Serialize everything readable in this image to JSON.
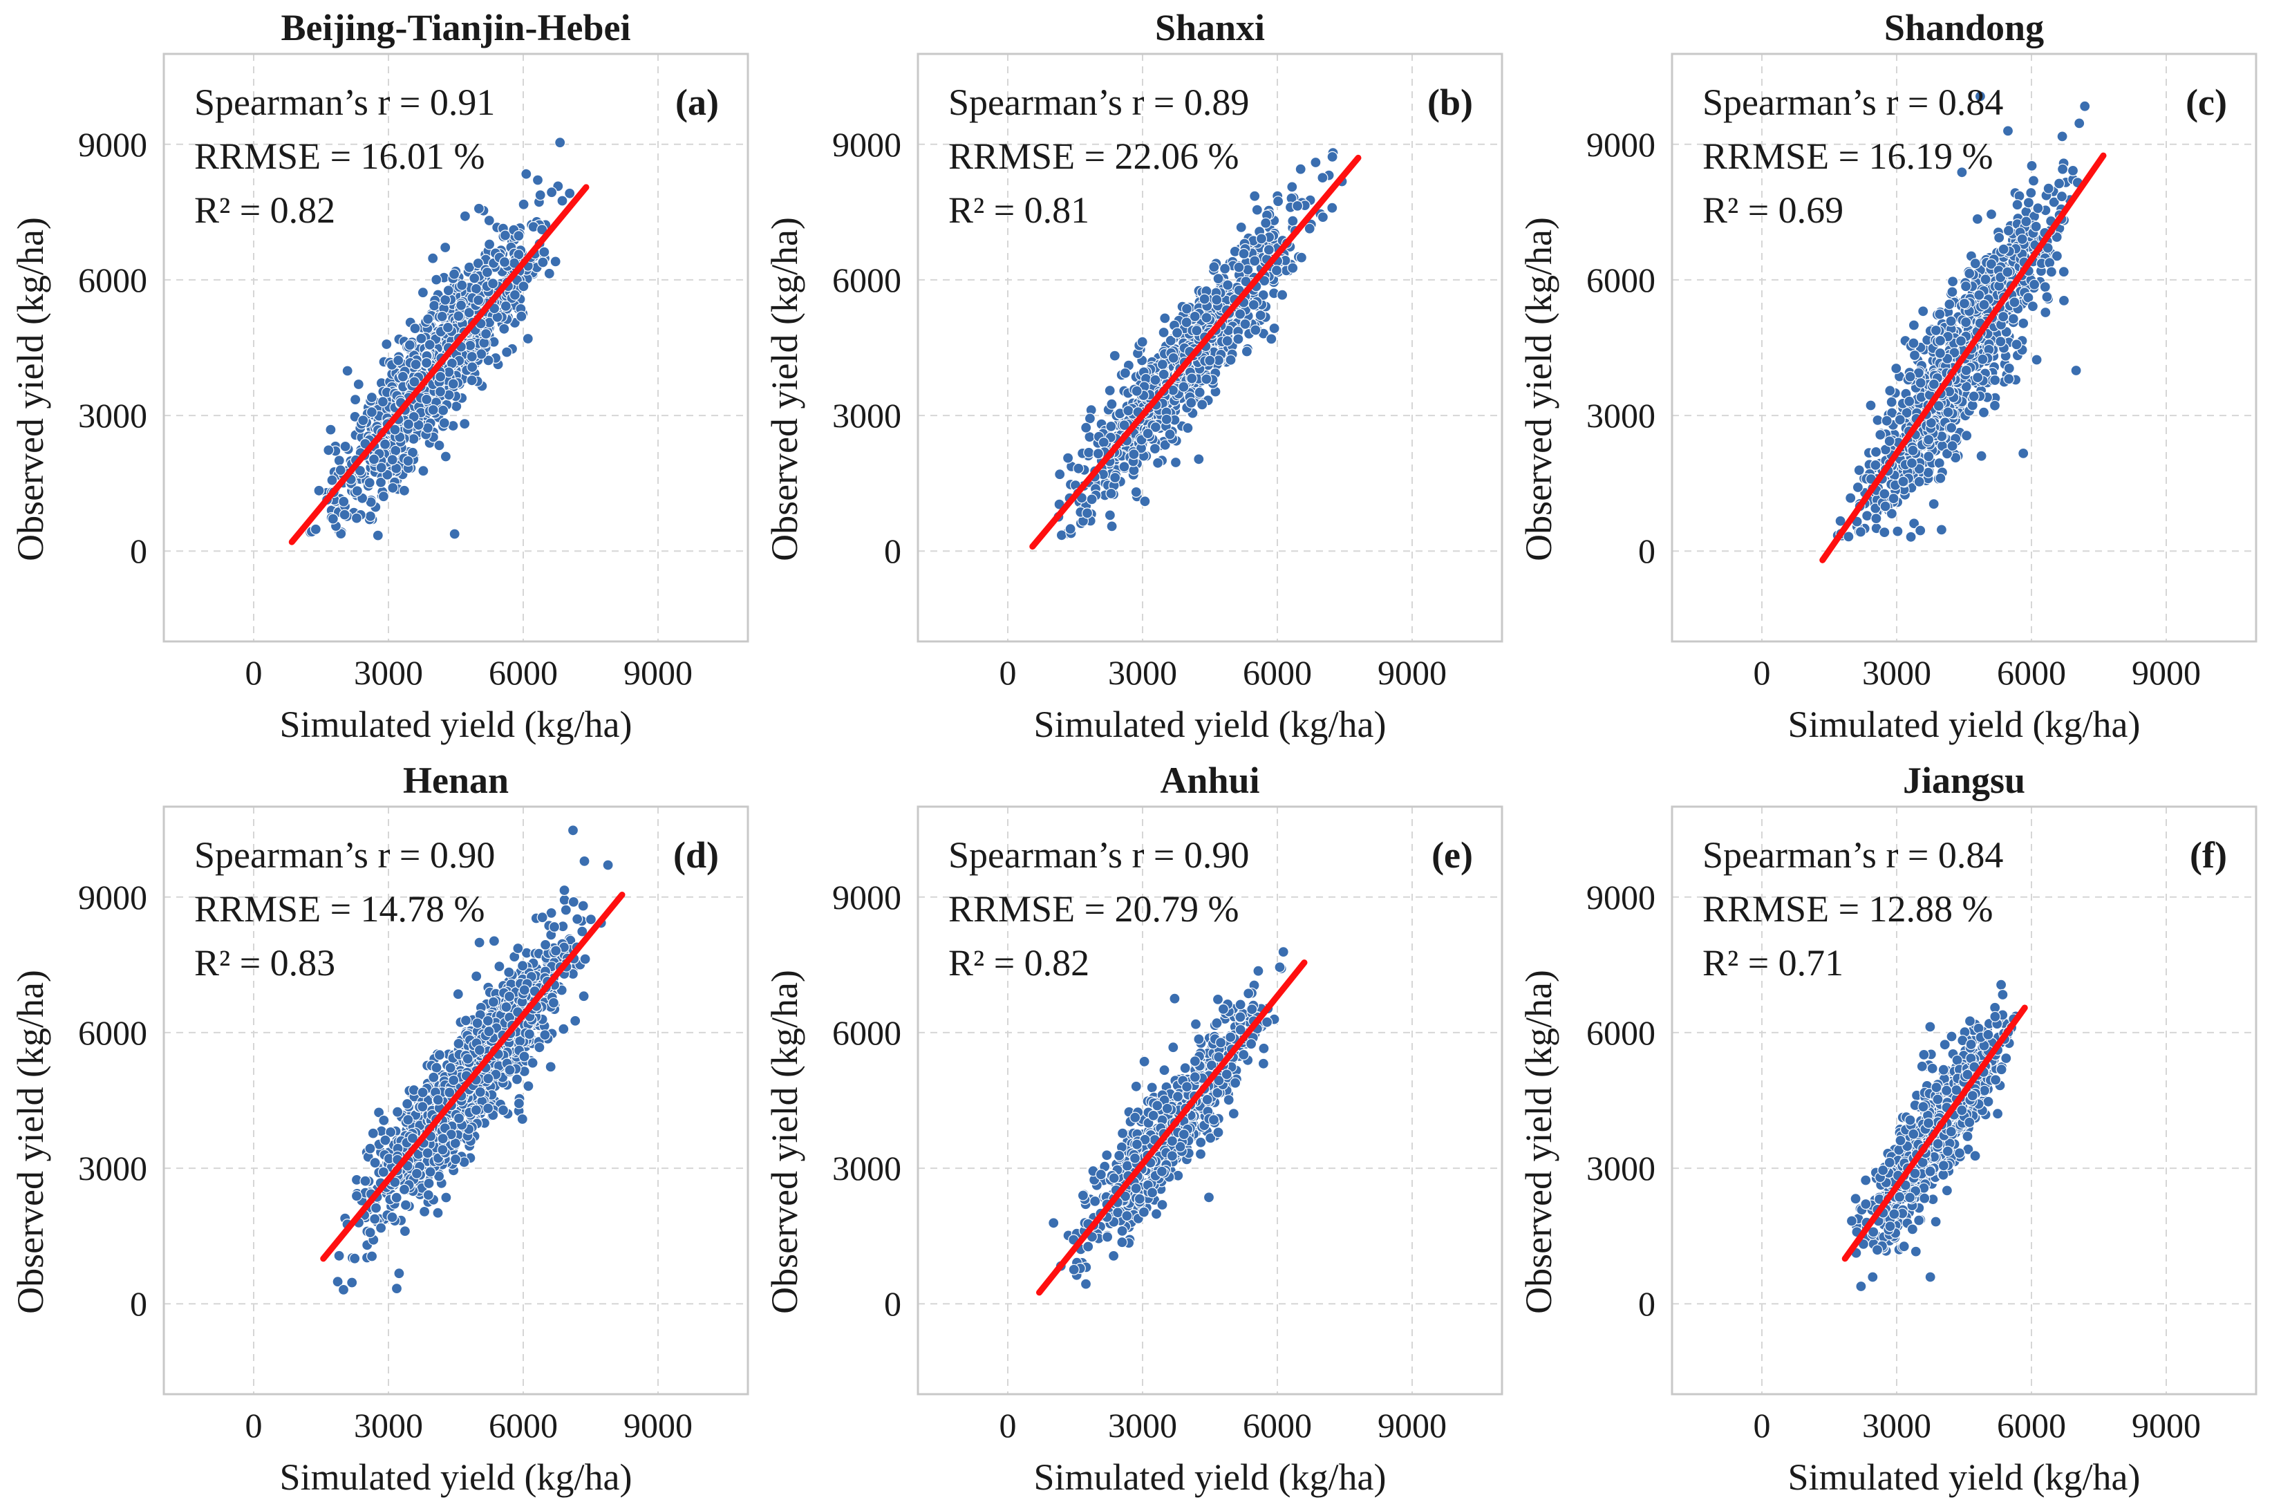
{
  "chart_data": [
    {
      "type": "scatter",
      "panel": "(a)",
      "title": "Beijing-Tianjin-Hebei",
      "xlabel": "Simulated yield (kg/ha)",
      "ylabel": "Observed yield (kg/ha)",
      "xlim": [
        -2000,
        11000
      ],
      "ylim": [
        -2000,
        11000
      ],
      "xticks": [
        "0",
        "3000",
        "6000",
        "9000"
      ],
      "yticks": [
        "0",
        "3000",
        "6000",
        "9000"
      ],
      "stats": [
        "Spearman’s r = 0.91",
        "RRMSE = 16.01 %",
        "R² = 0.82"
      ],
      "fit_line": {
        "x": [
          850,
          7400
        ],
        "y": [
          200,
          8050
        ]
      },
      "cloud": {
        "x_min": 900,
        "x_max": 7400,
        "noise": 700,
        "n": 1100
      },
      "colors": {
        "points": "#3a6eb0",
        "fit": "#ff0f0f"
      }
    },
    {
      "type": "scatter",
      "panel": "(b)",
      "title": "Shanxi",
      "xlabel": "Simulated yield (kg/ha)",
      "ylabel": "Observed yield (kg/ha)",
      "xlim": [
        -2000,
        11000
      ],
      "ylim": [
        -2000,
        11000
      ],
      "xticks": [
        "0",
        "3000",
        "6000",
        "9000"
      ],
      "yticks": [
        "0",
        "3000",
        "6000",
        "9000"
      ],
      "stats": [
        "Spearman’s r = 0.89",
        "RRMSE = 22.06 %",
        "R² = 0.81"
      ],
      "fit_line": {
        "x": [
          550,
          7800
        ],
        "y": [
          100,
          8700
        ]
      },
      "cloud": {
        "x_min": 500,
        "x_max": 7700,
        "noise": 600,
        "n": 1000
      },
      "colors": {
        "points": "#3a6eb0",
        "fit": "#ff0f0f"
      }
    },
    {
      "type": "scatter",
      "panel": "(c)",
      "title": "Shandong",
      "xlabel": "Simulated yield (kg/ha)",
      "ylabel": "Observed yield (kg/ha)",
      "xlim": [
        -2000,
        11000
      ],
      "ylim": [
        -2000,
        11000
      ],
      "xticks": [
        "0",
        "3000",
        "6000",
        "9000"
      ],
      "yticks": [
        "0",
        "3000",
        "6000",
        "9000"
      ],
      "stats": [
        "Spearman’s r = 0.84",
        "RRMSE = 16.19 %",
        "R² = 0.69"
      ],
      "fit_line": {
        "x": [
          1350,
          7600
        ],
        "y": [
          -200,
          8750
        ]
      },
      "cloud": {
        "x_min": 1300,
        "x_max": 7600,
        "noise": 800,
        "n": 1100
      },
      "colors": {
        "points": "#3a6eb0",
        "fit": "#ff0f0f"
      }
    },
    {
      "type": "scatter",
      "panel": "(d)",
      "title": "Henan",
      "xlabel": "Simulated yield (kg/ha)",
      "ylabel": "Observed yield (kg/ha)",
      "xlim": [
        -2000,
        11000
      ],
      "ylim": [
        -2000,
        11000
      ],
      "xticks": [
        "0",
        "3000",
        "6000",
        "9000"
      ],
      "yticks": [
        "0",
        "3000",
        "6000",
        "9000"
      ],
      "stats": [
        "Spearman’s r = 0.90",
        "RRMSE = 14.78 %",
        "R² = 0.83"
      ],
      "fit_line": {
        "x": [
          1550,
          8200
        ],
        "y": [
          1000,
          9050
        ]
      },
      "cloud": {
        "x_min": 1500,
        "x_max": 8100,
        "noise": 650,
        "n": 1300
      },
      "colors": {
        "points": "#3a6eb0",
        "fit": "#ff0f0f"
      }
    },
    {
      "type": "scatter",
      "panel": "(e)",
      "title": "Anhui",
      "xlabel": "Simulated yield (kg/ha)",
      "ylabel": "Observed yield (kg/ha)",
      "xlim": [
        -2000,
        11000
      ],
      "ylim": [
        -2000,
        11000
      ],
      "xticks": [
        "0",
        "3000",
        "6000",
        "9000"
      ],
      "yticks": [
        "0",
        "3000",
        "6000",
        "9000"
      ],
      "stats": [
        "Spearman’s r = 0.90",
        "RRMSE = 20.79 %",
        "R² = 0.82"
      ],
      "fit_line": {
        "x": [
          700,
          6600
        ],
        "y": [
          250,
          7550
        ]
      },
      "cloud": {
        "x_min": 700,
        "x_max": 6600,
        "noise": 550,
        "n": 700
      },
      "colors": {
        "points": "#3a6eb0",
        "fit": "#ff0f0f"
      }
    },
    {
      "type": "scatter",
      "panel": "(f)",
      "title": "Jiangsu",
      "xlabel": "Simulated yield (kg/ha)",
      "ylabel": "Observed yield (kg/ha)",
      "xlim": [
        -2000,
        11000
      ],
      "ylim": [
        -2000,
        11000
      ],
      "xticks": [
        "0",
        "3000",
        "6000",
        "9000"
      ],
      "yticks": [
        "0",
        "3000",
        "6000",
        "9000"
      ],
      "stats": [
        "Spearman’s r = 0.84",
        "RRMSE = 12.88 %",
        "R² = 0.71"
      ],
      "fit_line": {
        "x": [
          1850,
          5850
        ],
        "y": [
          1000,
          6550
        ]
      },
      "cloud": {
        "x_min": 1800,
        "x_max": 5900,
        "noise": 550,
        "n": 900
      },
      "colors": {
        "points": "#3a6eb0",
        "fit": "#ff0f0f"
      }
    }
  ]
}
